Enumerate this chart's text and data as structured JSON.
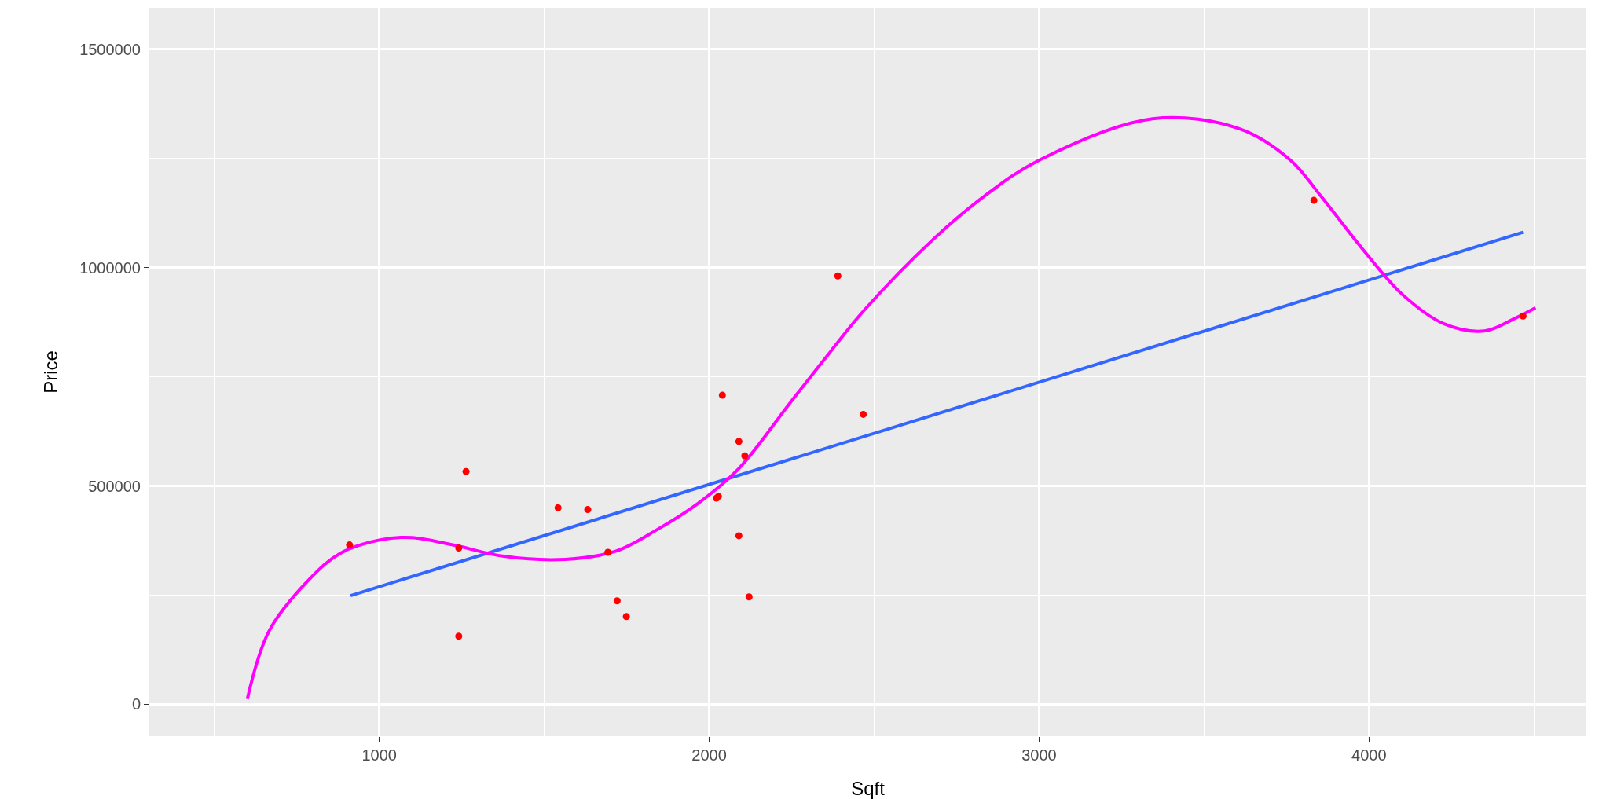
{
  "chart_data": {
    "type": "scatter",
    "xlabel": "Sqft",
    "ylabel": "Price",
    "xlim": [
      303,
      4659
    ],
    "ylim": [
      -73000,
      1595000
    ],
    "xticks": [
      1000,
      2000,
      3000,
      4000
    ],
    "yticks": [
      0,
      500000,
      1000000,
      1500000
    ],
    "grid": true,
    "marker": "circle",
    "series": [
      {
        "color": "#ff0000",
        "x": [
          910,
          1241,
          1263,
          1241,
          1542,
          1632,
          1693,
          1721,
          1749,
          2022,
          2028,
          2040,
          2090,
          2108,
          2090,
          2121,
          2390,
          2467,
          3833,
          4467
        ],
        "values": [
          365000,
          358000,
          533000,
          156000,
          450000,
          446000,
          348000,
          237000,
          201000,
          472000,
          476000,
          708000,
          602000,
          569000,
          386000,
          246000,
          981000,
          664000,
          1154000,
          889000
        ]
      },
      {
        "type": "line",
        "color": "#3366ff",
        "marker": "none",
        "x": [
          913,
          4467
        ],
        "values": [
          249000,
          1081000
        ]
      },
      {
        "type": "line",
        "color": "#ff00ff",
        "marker": "none",
        "x": [
          600,
          666,
          789,
          882,
          1006,
          1099,
          1223,
          1378,
          1563,
          1718,
          1842,
          1966,
          2090,
          2245,
          2368,
          2467,
          2678,
          2833,
          3000,
          3344,
          3607,
          3762,
          3854,
          3978,
          4102,
          4226,
          4350,
          4443,
          4505
        ],
        "values": [
          12000,
          168000,
          287000,
          346000,
          377000,
          382000,
          365000,
          339000,
          332000,
          351000,
          400000,
          460000,
          540000,
          690000,
          808000,
          900000,
          1064000,
          1163000,
          1246000,
          1341000,
          1318000,
          1246000,
          1164000,
          1045000,
          938000,
          872000,
          855000,
          884000,
          908000
        ]
      }
    ]
  }
}
